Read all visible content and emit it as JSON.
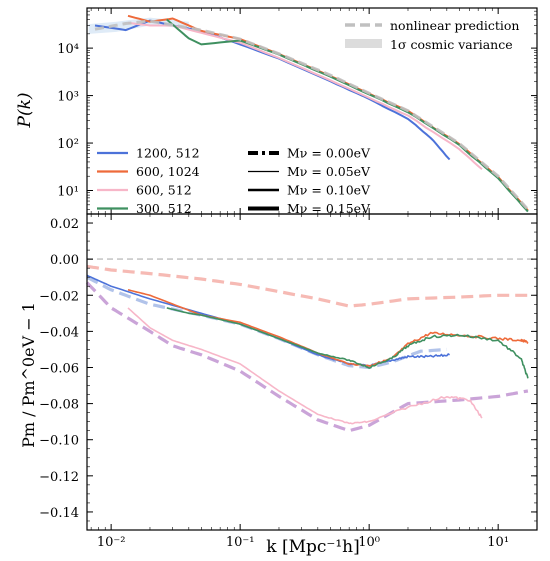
{
  "chart_data": [
    {
      "type": "line",
      "panel": "top",
      "ylabel": "P(k)",
      "xscale": "log",
      "yscale": "log",
      "xlim": [
        0.0065,
        20
      ],
      "ylim": [
        3.2,
        70000
      ],
      "yticks": [
        {
          "v": 10,
          "label": "10¹"
        },
        {
          "v": 100,
          "label": "10²"
        },
        {
          "v": 1000,
          "label": "10³"
        },
        {
          "v": 10000,
          "label": "10⁴"
        }
      ],
      "legend_styles": {
        "placement": "top-right",
        "entries": [
          {
            "label": "nonlinear prediction",
            "style": "dashed-grey"
          },
          {
            "label": "1σ cosmic variance",
            "style": "band-grey"
          }
        ]
      },
      "legend_sims": {
        "placement": "center-left",
        "entries": [
          {
            "label": "1200, 512",
            "color": "#4c72d9"
          },
          {
            "label": "600, 1024",
            "color": "#ee6a3a"
          },
          {
            "label": "600, 512",
            "color": "#f7b6c8"
          },
          {
            "label": "300, 512",
            "color": "#3f9060"
          }
        ]
      },
      "legend_mnu": {
        "placement": "center",
        "entries": [
          {
            "label": "Mν = 0.00eV",
            "style": "dash-dot-thick"
          },
          {
            "label": "Mν = 0.05eV",
            "style": "thin"
          },
          {
            "label": "Mν = 0.10eV",
            "style": "medium"
          },
          {
            "label": "Mν = 0.15eV",
            "style": "thick"
          }
        ]
      },
      "series": [
        {
          "name": "1200, 512",
          "color": "#4c72d9",
          "x": [
            0.0075,
            0.013,
            0.02,
            0.03,
            0.05,
            0.1,
            0.2,
            0.5,
            1.0,
            2.0,
            3.0,
            4.2
          ],
          "y": [
            30000,
            24000,
            38000,
            30000,
            23000,
            12000,
            6000,
            2000,
            850,
            320,
            130,
            45
          ]
        },
        {
          "name": "600, 1024",
          "color": "#ee6a3a",
          "x": [
            0.0135,
            0.02,
            0.03,
            0.05,
            0.1,
            0.2,
            0.5,
            1.0,
            2.0,
            5.0,
            10.0,
            17.0
          ],
          "y": [
            48000,
            36000,
            42000,
            23000,
            15500,
            7500,
            2600,
            1100,
            470,
            95,
            19,
            3.8
          ]
        },
        {
          "name": "600, 512",
          "color": "#f7b6c8",
          "x": [
            0.0135,
            0.02,
            0.03,
            0.05,
            0.1,
            0.2,
            0.5,
            1.0,
            2.0,
            5.0,
            7.5
          ],
          "y": [
            34000,
            30000,
            30000,
            21000,
            13000,
            6200,
            2100,
            900,
            380,
            75,
            28
          ]
        },
        {
          "name": "300, 512",
          "color": "#3f9060",
          "x": [
            0.027,
            0.04,
            0.05,
            0.1,
            0.2,
            0.5,
            1.0,
            2.0,
            5.0,
            10.0,
            17.0
          ],
          "y": [
            40000,
            16000,
            12000,
            14500,
            7300,
            2500,
            1050,
            450,
            90,
            18,
            3.6
          ]
        },
        {
          "name": "nonlinear prediction",
          "color": "#c0c0c0",
          "dashed": true,
          "x": [
            0.0075,
            0.013,
            0.02,
            0.05,
            0.1,
            0.2,
            0.5,
            1.0,
            2.0,
            5.0,
            10.0,
            17.0
          ],
          "y": [
            25000,
            33000,
            37000,
            24000,
            15500,
            7600,
            2700,
            1120,
            480,
            98,
            20,
            4.0
          ]
        }
      ]
    },
    {
      "type": "line",
      "panel": "bottom",
      "xlabel": "k [Mpc⁻¹h]",
      "ylabel": "Pm / Pm^0eV − 1",
      "xscale": "log",
      "xlim": [
        0.0065,
        20
      ],
      "ylim": [
        -0.15,
        0.025
      ],
      "yticks": [
        0.02,
        0.0,
        -0.02,
        -0.04,
        -0.06,
        -0.08,
        -0.1,
        -0.12,
        -0.14
      ],
      "ytick_labels": [
        "0.02",
        "0.00",
        "−0.02",
        "−0.04",
        "−0.06",
        "−0.08",
        "−0.10",
        "−0.12",
        "−0.14"
      ],
      "xticks": [
        {
          "v": 0.01,
          "label": "10⁻²"
        },
        {
          "v": 0.1,
          "label": "10⁻¹"
        },
        {
          "v": 1,
          "label": "10⁰"
        },
        {
          "v": 10,
          "label": "10¹"
        }
      ],
      "grid": false,
      "series": [
        {
          "name": "zero reference",
          "color": "#c8c8c8",
          "dashed": true,
          "x": [
            0.0065,
            20
          ],
          "y": [
            0.0,
            0.0
          ]
        },
        {
          "name": "prediction Mν=0.05eV",
          "color": "#f5b3ac",
          "dashed": true,
          "x": [
            0.0065,
            0.01,
            0.02,
            0.05,
            0.1,
            0.2,
            0.4,
            0.7,
            1.0,
            2.0,
            5.0,
            10.0,
            17.0
          ],
          "y": [
            -0.004,
            -0.006,
            -0.008,
            -0.011,
            -0.014,
            -0.018,
            -0.022,
            -0.026,
            -0.025,
            -0.022,
            -0.021,
            -0.02,
            -0.02
          ]
        },
        {
          "name": "prediction Mν=0.10eV",
          "color": "#a9bde8",
          "dashed": true,
          "x": [
            0.0065,
            0.01,
            0.02,
            0.05,
            0.1,
            0.2,
            0.4,
            0.7,
            1.0,
            1.5,
            2.5,
            4.0
          ],
          "y": [
            -0.01,
            -0.017,
            -0.025,
            -0.031,
            -0.036,
            -0.044,
            -0.053,
            -0.059,
            -0.06,
            -0.057,
            -0.051,
            -0.05
          ]
        },
        {
          "name": "prediction Mν=0.15eV",
          "color": "#c49ad4",
          "dashed": true,
          "x": [
            0.0065,
            0.01,
            0.02,
            0.03,
            0.05,
            0.1,
            0.2,
            0.4,
            0.7,
            1.0,
            2.0,
            5.0,
            10.0,
            17.0
          ],
          "y": [
            -0.013,
            -0.027,
            -0.04,
            -0.048,
            -0.053,
            -0.062,
            -0.076,
            -0.089,
            -0.095,
            -0.092,
            -0.08,
            -0.078,
            -0.076,
            -0.073
          ]
        },
        {
          "name": "1200, 512",
          "color": "#4c72d9",
          "x": [
            0.0065,
            0.01,
            0.02,
            0.05,
            0.1,
            0.2,
            0.4,
            0.7,
            1.0,
            1.5,
            2.0,
            3.0,
            4.2
          ],
          "y": [
            -0.009,
            -0.015,
            -0.022,
            -0.03,
            -0.036,
            -0.044,
            -0.053,
            -0.058,
            -0.059,
            -0.056,
            -0.054,
            -0.054,
            -0.053
          ]
        },
        {
          "name": "600, 1024",
          "color": "#ee6a3a",
          "x": [
            0.0135,
            0.02,
            0.05,
            0.1,
            0.2,
            0.4,
            0.7,
            1.0,
            1.5,
            2.0,
            3.0,
            5.0,
            10.0,
            15.0,
            17.0
          ],
          "y": [
            -0.017,
            -0.02,
            -0.031,
            -0.035,
            -0.043,
            -0.052,
            -0.058,
            -0.059,
            -0.055,
            -0.047,
            -0.041,
            -0.042,
            -0.044,
            -0.045,
            -0.046
          ]
        },
        {
          "name": "600, 512",
          "color": "#f7b6c8",
          "x": [
            0.0135,
            0.02,
            0.03,
            0.05,
            0.1,
            0.2,
            0.4,
            0.7,
            1.0,
            2.0,
            4.0,
            6.0,
            7.5
          ],
          "y": [
            -0.027,
            -0.038,
            -0.045,
            -0.05,
            -0.058,
            -0.073,
            -0.086,
            -0.091,
            -0.09,
            -0.082,
            -0.076,
            -0.078,
            -0.088
          ]
        },
        {
          "name": "300, 512",
          "color": "#3f9060",
          "x": [
            0.027,
            0.04,
            0.05,
            0.1,
            0.2,
            0.4,
            0.7,
            1.0,
            1.5,
            2.0,
            3.0,
            5.0,
            10.0,
            15.0,
            17.0
          ],
          "y": [
            -0.027,
            -0.03,
            -0.031,
            -0.036,
            -0.044,
            -0.052,
            -0.056,
            -0.06,
            -0.055,
            -0.048,
            -0.043,
            -0.042,
            -0.045,
            -0.055,
            -0.066
          ]
        }
      ]
    }
  ]
}
